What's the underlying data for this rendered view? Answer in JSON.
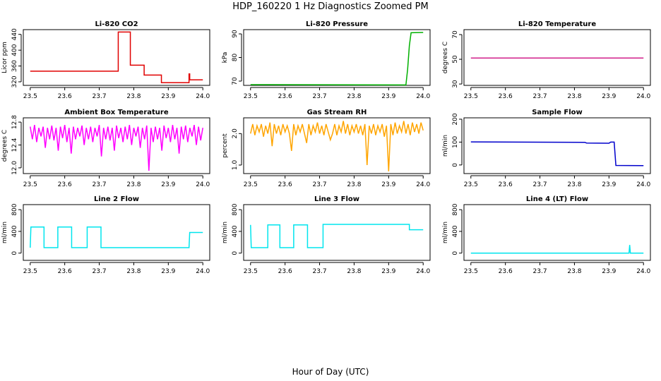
{
  "title": "HDP_160220  1 Hz Diagnostics Zoomed PM",
  "xlabel": "Hour of Day (UTC)",
  "chart_data": [
    {
      "type": "line",
      "title": "Li-820 CO2",
      "ylabel": "Licor ppm",
      "color": "#e00000",
      "x": [
        23.5,
        23.755,
        23.755,
        23.79,
        23.79,
        23.83,
        23.83,
        23.88,
        23.88,
        23.96,
        23.96,
        23.962,
        23.962,
        24.0
      ],
      "values": [
        347,
        347,
        446,
        446,
        362,
        362,
        337,
        337,
        318,
        318,
        340,
        340,
        325,
        325
      ],
      "xlim": [
        23.48,
        24.02
      ],
      "ylim": [
        311,
        452
      ],
      "xticks": [
        23.5,
        23.6,
        23.7,
        23.8,
        23.9,
        {
          "value": 24,
          "label": "24.0"
        }
      ],
      "yticks": [
        320,
        360,
        400,
        440
      ]
    },
    {
      "type": "line",
      "title": "Li-820 Pressure",
      "ylabel": "kPa",
      "color": "#00b000",
      "x": [
        23.5,
        23.95,
        23.955,
        23.96,
        23.965,
        24.0
      ],
      "values": [
        68.5,
        68.4,
        75,
        85,
        90.5,
        90.6
      ],
      "xlim": [
        23.48,
        24.02
      ],
      "ylim": [
        68.2,
        91.8
      ],
      "xticks": [
        23.5,
        23.6,
        23.7,
        23.8,
        23.9,
        {
          "value": 24,
          "label": "24.0"
        }
      ],
      "yticks": [
        70,
        80,
        90
      ]
    },
    {
      "type": "line",
      "title": "Li-820 Temperature",
      "ylabel": "degrees C",
      "color": "#d0208a",
      "x": [
        23.5,
        24.0
      ],
      "values": [
        51,
        51
      ],
      "xlim": [
        23.48,
        24.02
      ],
      "ylim": [
        28.9,
        74
      ],
      "xticks": [
        23.5,
        23.6,
        23.7,
        23.8,
        23.9,
        {
          "value": 24,
          "label": "24.0"
        }
      ],
      "yticks": [
        30,
        50,
        70
      ]
    },
    {
      "type": "line",
      "title": "Ambient Box Temperature",
      "ylabel": "degrees C",
      "color": "#ff00ff",
      "x": [
        23.5,
        23.50625,
        23.5125,
        23.51875,
        23.525,
        23.53125,
        23.5375,
        23.54375,
        23.55,
        23.55625,
        23.5625,
        23.56875,
        23.575,
        23.58125,
        23.5875,
        23.59375,
        23.6,
        23.60625,
        23.6125,
        23.61875,
        23.625,
        23.63125,
        23.6375,
        23.64375,
        23.65,
        23.65625,
        23.6625,
        23.66875,
        23.675,
        23.68125,
        23.6875,
        23.69375,
        23.7,
        23.70625,
        23.7125,
        23.71875,
        23.725,
        23.73125,
        23.7375,
        23.74375,
        23.75,
        23.75625,
        23.7625,
        23.76875,
        23.775,
        23.78125,
        23.7875,
        23.79375,
        23.8,
        23.80625,
        23.8125,
        23.81875,
        23.825,
        23.83125,
        23.8375,
        23.84375,
        23.85,
        23.85625,
        23.8625,
        23.86875,
        23.875,
        23.88125,
        23.8875,
        23.89375,
        23.9,
        23.90625,
        23.9125,
        23.91875,
        23.925,
        23.93125,
        23.9375,
        23.94375,
        23.95,
        23.95625,
        23.9625,
        23.96875,
        23.975,
        23.98125,
        23.9875,
        23.99375,
        24.0
      ],
      "values": [
        12.72,
        12.5,
        12.75,
        12.45,
        12.7,
        12.55,
        12.72,
        12.35,
        12.7,
        12.5,
        12.74,
        12.48,
        12.7,
        12.3,
        12.72,
        12.52,
        12.75,
        12.45,
        12.7,
        12.25,
        12.72,
        12.5,
        12.7,
        12.55,
        12.74,
        12.4,
        12.7,
        12.5,
        12.72,
        12.45,
        12.7,
        12.55,
        12.75,
        12.2,
        12.7,
        12.5,
        12.72,
        12.48,
        12.7,
        12.3,
        12.74,
        12.52,
        12.7,
        12.45,
        12.72,
        12.5,
        12.75,
        12.4,
        12.7,
        12.55,
        12.72,
        12.35,
        12.7,
        12.5,
        12.74,
        11.95,
        12.7,
        12.45,
        12.72,
        12.5,
        12.7,
        12.3,
        12.74,
        12.52,
        12.7,
        12.45,
        12.75,
        12.5,
        12.7,
        12.25,
        12.72,
        12.5,
        12.74,
        12.45,
        12.7,
        12.55,
        12.75,
        12.4,
        12.72,
        12.48,
        12.7
      ],
      "xlim": [
        23.48,
        24.02
      ],
      "ylim": [
        11.9,
        12.875
      ],
      "xticks": [
        23.5,
        23.6,
        23.7,
        23.8,
        23.9,
        {
          "value": 24,
          "label": "24.0"
        }
      ],
      "yticks": [
        {
          "value": 12,
          "label": "12.0"
        },
        12.4,
        12.8
      ]
    },
    {
      "type": "line",
      "title": "Gas Stream RH",
      "ylabel": "percent",
      "color": "#ffa500",
      "x": [
        23.5,
        23.50625,
        23.5125,
        23.51875,
        23.525,
        23.53125,
        23.5375,
        23.54375,
        23.55,
        23.55625,
        23.5625,
        23.56875,
        23.575,
        23.58125,
        23.5875,
        23.59375,
        23.6,
        23.60625,
        23.6125,
        23.61875,
        23.625,
        23.63125,
        23.6375,
        23.64375,
        23.65,
        23.65625,
        23.6625,
        23.66875,
        23.675,
        23.68125,
        23.6875,
        23.69375,
        23.7,
        23.70625,
        23.7125,
        23.71875,
        23.725,
        23.73125,
        23.7375,
        23.74375,
        23.75,
        23.75625,
        23.7625,
        23.76875,
        23.775,
        23.78125,
        23.7875,
        23.79375,
        23.8,
        23.80625,
        23.8125,
        23.81875,
        23.825,
        23.83125,
        23.8375,
        23.84375,
        23.85,
        23.85625,
        23.8625,
        23.86875,
        23.875,
        23.88125,
        23.8875,
        23.89375,
        23.9,
        23.90625,
        23.9125,
        23.91875,
        23.925,
        23.93125,
        23.9375,
        23.94375,
        23.95,
        23.95625,
        23.9625,
        23.96875,
        23.975,
        23.98125,
        23.9875,
        23.99375,
        24.0
      ],
      "values": [
        2.0,
        2.3,
        1.95,
        2.25,
        2.05,
        2.3,
        1.9,
        2.25,
        2.0,
        2.35,
        1.6,
        2.3,
        2.0,
        2.25,
        1.95,
        2.3,
        2.05,
        2.25,
        2.0,
        1.45,
        2.3,
        1.95,
        2.25,
        2.05,
        2.3,
        2.0,
        1.7,
        2.3,
        1.95,
        2.25,
        2.05,
        2.35,
        2.0,
        2.25,
        1.95,
        2.3,
        2.05,
        1.8,
        2.0,
        2.3,
        1.95,
        2.25,
        2.05,
        2.4,
        2.0,
        2.3,
        1.95,
        2.25,
        2.05,
        2.3,
        2.0,
        2.25,
        1.95,
        2.3,
        1.0,
        2.25,
        2.0,
        2.3,
        1.95,
        2.25,
        2.05,
        2.3,
        1.9,
        2.25,
        0.8,
        2.3,
        1.95,
        2.35,
        2.0,
        2.25,
        2.05,
        2.4,
        2.0,
        2.3,
        1.95,
        2.35,
        2.05,
        2.3,
        2.0,
        2.35,
        2.1
      ],
      "xlim": [
        23.48,
        24.02
      ],
      "ylim": [
        0.73,
        2.5
      ],
      "xticks": [
        23.5,
        23.6,
        23.7,
        23.8,
        23.9,
        {
          "value": 24,
          "label": "24.0"
        }
      ],
      "yticks": [
        {
          "value": 1,
          "label": "1.0"
        },
        {
          "value": 2,
          "label": "2.0"
        }
      ]
    },
    {
      "type": "line",
      "title": "Sample Flow",
      "ylabel": "ml/min",
      "color": "#0000cc",
      "x": [
        23.5,
        23.83,
        23.835,
        23.9,
        23.905,
        23.915,
        23.92,
        24.0
      ],
      "values": [
        101,
        99,
        96,
        95,
        100,
        100,
        -2,
        -3
      ],
      "xlim": [
        23.48,
        24.02
      ],
      "ylim": [
        -37.5,
        206
      ],
      "xticks": [
        23.5,
        23.6,
        23.7,
        23.8,
        23.9,
        {
          "value": 24,
          "label": "24.0"
        }
      ],
      "yticks": [
        0,
        100,
        200
      ]
    },
    {
      "type": "line",
      "title": "Line 2 Flow",
      "ylabel": "ml/min",
      "color": "#00e5ee",
      "x": [
        23.5,
        23.502,
        23.54,
        23.54,
        23.58,
        23.58,
        23.62,
        23.62,
        23.665,
        23.665,
        23.705,
        23.705,
        23.96,
        23.962,
        24.0
      ],
      "values": [
        100,
        480,
        480,
        100,
        100,
        480,
        480,
        100,
        100,
        480,
        480,
        100,
        100,
        380,
        380
      ],
      "xlim": [
        23.48,
        24.02
      ],
      "ylim": [
        -133,
        893
      ],
      "xticks": [
        23.5,
        23.6,
        23.7,
        23.8,
        23.9,
        {
          "value": 24,
          "label": "24.0"
        }
      ],
      "yticks": [
        0,
        400,
        800
      ]
    },
    {
      "type": "line",
      "title": "Line 3 Flow",
      "ylabel": "ml/min",
      "color": "#00e5ee",
      "x": [
        23.5,
        23.502,
        23.55,
        23.55,
        23.585,
        23.585,
        23.625,
        23.625,
        23.665,
        23.665,
        23.71,
        23.71,
        23.96,
        23.96,
        24.0
      ],
      "values": [
        520,
        100,
        100,
        520,
        520,
        100,
        100,
        520,
        520,
        100,
        100,
        530,
        530,
        430,
        430
      ],
      "xlim": [
        23.48,
        24.02
      ],
      "ylim": [
        -133,
        893
      ],
      "xticks": [
        23.5,
        23.6,
        23.7,
        23.8,
        23.9,
        {
          "value": 24,
          "label": "24.0"
        }
      ],
      "yticks": [
        0,
        400,
        800
      ]
    },
    {
      "type": "line",
      "title": "Line 4 (LT) Flow",
      "ylabel": "ml/min",
      "color": "#00e5ee",
      "x": [
        23.5,
        23.958,
        23.96,
        23.962,
        24.0
      ],
      "values": [
        0,
        0,
        150,
        0,
        0
      ],
      "xlim": [
        23.48,
        24.02
      ],
      "ylim": [
        -133,
        893
      ],
      "xticks": [
        23.5,
        23.6,
        23.7,
        23.8,
        23.9,
        {
          "value": 24,
          "label": "24.0"
        }
      ],
      "yticks": [
        0,
        400,
        800
      ]
    }
  ]
}
